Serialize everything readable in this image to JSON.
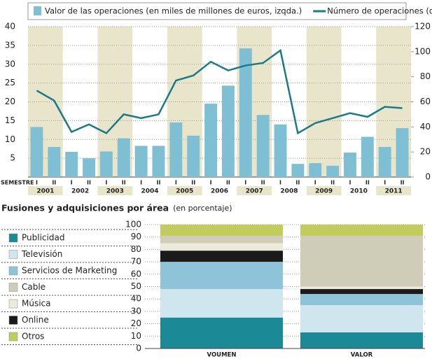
{
  "chart_data": [
    {
      "type": "bar_line",
      "categories": [
        "I",
        "II",
        "I",
        "II",
        "I",
        "II",
        "I",
        "II",
        "I",
        "II",
        "I",
        "II",
        "I",
        "II",
        "I",
        "II",
        "I",
        "II",
        "I",
        "II",
        "I",
        "II"
      ],
      "years": [
        "2001",
        "2002",
        "2003",
        "2004",
        "2005",
        "2006",
        "2007",
        "2008",
        "2009",
        "2010",
        "2011"
      ],
      "x_label": "SEMESTRE",
      "series": [
        {
          "name": "Valor de las operaciones (en miles de millones de euros, izqda.)",
          "color": "#7fbfd4",
          "kind": "bar",
          "values": [
            13.3,
            8,
            6.7,
            5,
            6.8,
            10.3,
            8.3,
            8.3,
            14.5,
            11,
            19.5,
            24.3,
            34.2,
            16.5,
            14,
            3.5,
            3.7,
            3,
            6.5,
            10.7,
            8,
            13
          ]
        },
        {
          "name": "Número de operaciones (drcha.)",
          "color": "#1a7a8a",
          "kind": "line",
          "axis": "y2",
          "values": [
            69,
            61,
            36,
            42,
            35,
            50,
            47,
            50,
            77,
            81,
            92,
            85,
            89,
            91,
            101,
            35,
            43,
            47,
            51,
            48,
            56,
            55
          ]
        }
      ],
      "ylim": [
        0,
        40
      ],
      "yticks": [
        5,
        10,
        15,
        20,
        25,
        30,
        35,
        40
      ],
      "y2lim": [
        0,
        120
      ],
      "y2ticks": [
        0,
        20,
        40,
        60,
        80,
        100,
        120
      ],
      "band_color": "#e9e5cb"
    },
    {
      "type": "stacked_bar",
      "title": "Fusiones y adquisiciones por área",
      "subtitle": "(en porcentaje)",
      "categories": [
        "VOUMEN",
        "VALOR"
      ],
      "series": [
        {
          "name": "Publicidad",
          "color": "#1b8a96",
          "values": [
            25,
            13
          ]
        },
        {
          "name": "Televisión",
          "color": "#cfe6ef",
          "values": [
            23,
            22
          ]
        },
        {
          "name": "Servicios de Marketing",
          "color": "#8fc4d8",
          "values": [
            22,
            9
          ]
        },
        {
          "name": "Cable",
          "color": "#cfcdb8",
          "values": [
            6,
            41
          ]
        },
        {
          "name": "Música",
          "color": "#ecead9",
          "values": [
            6,
            2
          ]
        },
        {
          "name": "Online",
          "color": "#1a1a1a",
          "values": [
            9,
            4
          ]
        },
        {
          "name": "Otros",
          "color": "#c1cc5c",
          "values": [
            9,
            9
          ]
        }
      ],
      "ylim": [
        0,
        100
      ],
      "yticks": [
        0,
        10,
        20,
        30,
        40,
        50,
        60,
        70,
        80,
        90,
        100
      ]
    }
  ]
}
